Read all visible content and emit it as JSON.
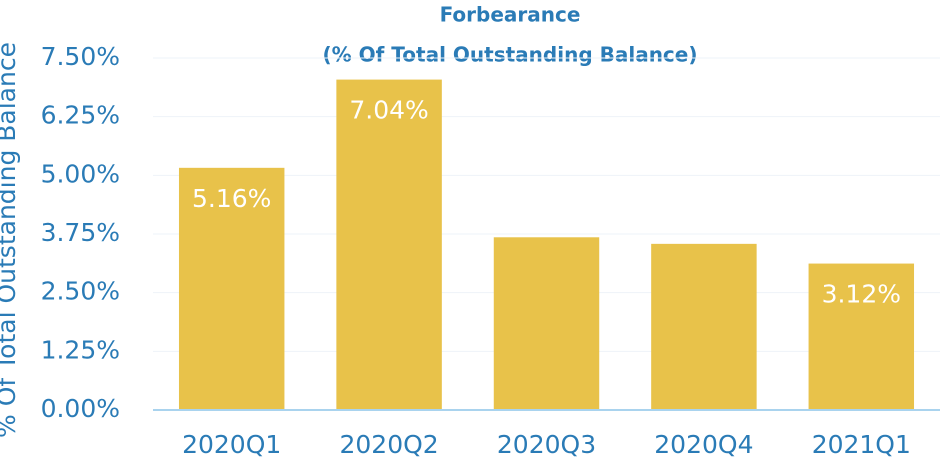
{
  "chart_data": {
    "type": "bar",
    "title": "Forbearance",
    "subtitle": "(% Of Total Outstanding Balance)",
    "y_label": "% Of Total Outstanding Balance",
    "categories": [
      "2020Q1",
      "2020Q2",
      "2020Q3",
      "2020Q4",
      "2021Q1"
    ],
    "values": [
      5.16,
      7.04,
      3.68,
      3.54,
      3.12
    ],
    "value_labels": [
      "5.16%",
      "7.04%",
      null,
      null,
      "3.12%"
    ],
    "color": "#e8c24a",
    "ylim": [
      0,
      7.5
    ],
    "yticks": [
      {
        "value": 0,
        "label": "0.00%"
      },
      {
        "value": 1.25,
        "label": "1.25%"
      },
      {
        "value": 2.5,
        "label": "2.50%"
      },
      {
        "value": 3.75,
        "label": "3.75%"
      },
      {
        "value": 5,
        "label": "5.00%"
      },
      {
        "value": 6.25,
        "label": "6.25%"
      },
      {
        "value": 7.5,
        "label": "7.50%"
      }
    ],
    "grid": true
  }
}
